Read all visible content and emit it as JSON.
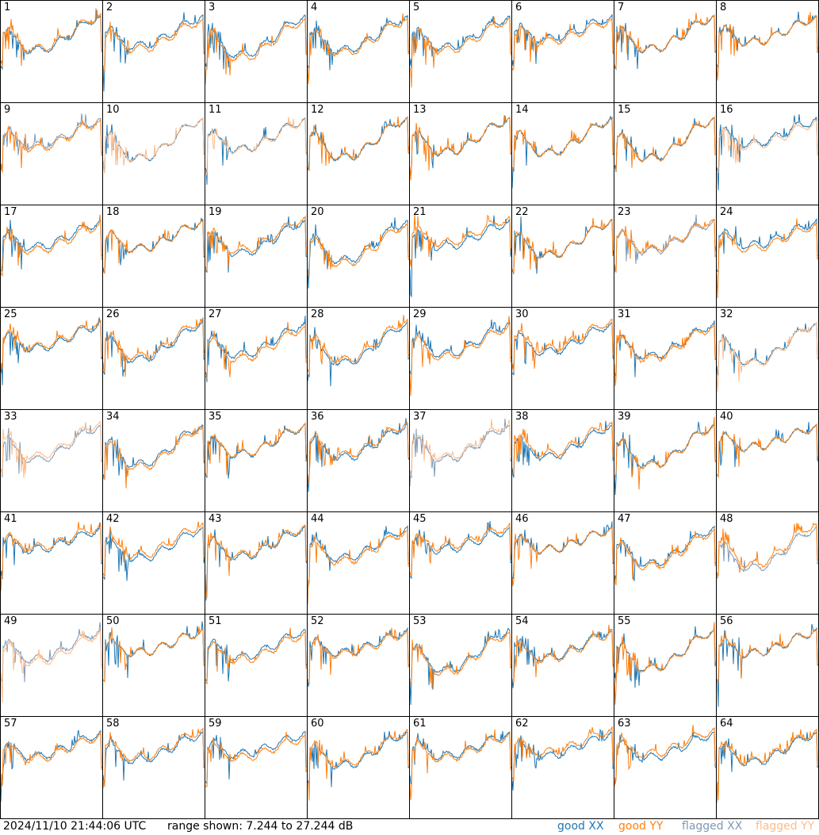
{
  "timestamp": "2024/11/10 21:44:06 UTC",
  "range": "range shown: 7.244 to 27.244 dB",
  "legend": [
    {
      "label": "good XX",
      "color": "#1f77b4"
    },
    {
      "label": "good YY",
      "color": "#ff7f0e"
    },
    {
      "label": "flagged XX",
      "color": "#7f99b5"
    },
    {
      "label": "flagged YY",
      "color": "#ffbb88"
    }
  ],
  "panels": [
    {
      "label": "1",
      "xx": "good",
      "yy": "good"
    },
    {
      "label": "2",
      "xx": "good",
      "yy": "good"
    },
    {
      "label": "3",
      "xx": "good",
      "yy": "good"
    },
    {
      "label": "4",
      "xx": "good",
      "yy": "good"
    },
    {
      "label": "5",
      "xx": "good",
      "yy": "good"
    },
    {
      "label": "6",
      "xx": "good",
      "yy": "good"
    },
    {
      "label": "7",
      "xx": "good",
      "yy": "good"
    },
    {
      "label": "8",
      "xx": "good",
      "yy": "good"
    },
    {
      "label": "9",
      "xx": "flagged",
      "yy": "good"
    },
    {
      "label": "10",
      "xx": "good",
      "yy": "flagged"
    },
    {
      "label": "11",
      "xx": "good",
      "yy": "flagged"
    },
    {
      "label": "12",
      "xx": "good",
      "yy": "good"
    },
    {
      "label": "13",
      "xx": "good",
      "yy": "good"
    },
    {
      "label": "14",
      "xx": "good",
      "yy": "good"
    },
    {
      "label": "15",
      "xx": "good",
      "yy": "good"
    },
    {
      "label": "16",
      "xx": "good",
      "yy": "flagged"
    },
    {
      "label": "17",
      "xx": "good",
      "yy": "good"
    },
    {
      "label": "18",
      "xx": "good",
      "yy": "good"
    },
    {
      "label": "19",
      "xx": "good",
      "yy": "good"
    },
    {
      "label": "20",
      "xx": "good",
      "yy": "good"
    },
    {
      "label": "21",
      "xx": "good",
      "yy": "good"
    },
    {
      "label": "22",
      "xx": "good",
      "yy": "good"
    },
    {
      "label": "23",
      "xx": "flagged",
      "yy": "good"
    },
    {
      "label": "24",
      "xx": "good",
      "yy": "good"
    },
    {
      "label": "25",
      "xx": "good",
      "yy": "good"
    },
    {
      "label": "26",
      "xx": "good",
      "yy": "good"
    },
    {
      "label": "27",
      "xx": "good",
      "yy": "good"
    },
    {
      "label": "28",
      "xx": "good",
      "yy": "good"
    },
    {
      "label": "29",
      "xx": "good",
      "yy": "good"
    },
    {
      "label": "30",
      "xx": "good",
      "yy": "good"
    },
    {
      "label": "31",
      "xx": "good",
      "yy": "good"
    },
    {
      "label": "32",
      "xx": "good",
      "yy": "flagged"
    },
    {
      "label": "33",
      "xx": "flagged",
      "yy": "flagged"
    },
    {
      "label": "34",
      "xx": "good",
      "yy": "good"
    },
    {
      "label": "35",
      "xx": "good",
      "yy": "good"
    },
    {
      "label": "36",
      "xx": "good",
      "yy": "good"
    },
    {
      "label": "37",
      "xx": "flagged",
      "yy": "flagged"
    },
    {
      "label": "38",
      "xx": "good",
      "yy": "good"
    },
    {
      "label": "39",
      "xx": "good",
      "yy": "good"
    },
    {
      "label": "40",
      "xx": "good",
      "yy": "good"
    },
    {
      "label": "41",
      "xx": "good",
      "yy": "good"
    },
    {
      "label": "42",
      "xx": "good",
      "yy": "good"
    },
    {
      "label": "43",
      "xx": "good",
      "yy": "good"
    },
    {
      "label": "44",
      "xx": "good",
      "yy": "good"
    },
    {
      "label": "45",
      "xx": "good",
      "yy": "good"
    },
    {
      "label": "46",
      "xx": "good",
      "yy": "good"
    },
    {
      "label": "47",
      "xx": "good",
      "yy": "good"
    },
    {
      "label": "48",
      "xx": "flagged",
      "yy": "good"
    },
    {
      "label": "49",
      "xx": "flagged",
      "yy": "flagged"
    },
    {
      "label": "50",
      "xx": "good",
      "yy": "good"
    },
    {
      "label": "51",
      "xx": "good",
      "yy": "good"
    },
    {
      "label": "52",
      "xx": "good",
      "yy": "good"
    },
    {
      "label": "53",
      "xx": "good",
      "yy": "good"
    },
    {
      "label": "54",
      "xx": "good",
      "yy": "good"
    },
    {
      "label": "55",
      "xx": "good",
      "yy": "good"
    },
    {
      "label": "56",
      "xx": "good",
      "yy": "good"
    },
    {
      "label": "57",
      "xx": "good",
      "yy": "good"
    },
    {
      "label": "58",
      "xx": "good",
      "yy": "good"
    },
    {
      "label": "59",
      "xx": "good",
      "yy": "good"
    },
    {
      "label": "60",
      "xx": "good",
      "yy": "good"
    },
    {
      "label": "61",
      "xx": "good",
      "yy": "good"
    },
    {
      "label": "62",
      "xx": "good",
      "yy": "good"
    },
    {
      "label": "63",
      "xx": "good",
      "yy": "good"
    },
    {
      "label": "64",
      "xx": "good",
      "yy": "good"
    }
  ]
}
